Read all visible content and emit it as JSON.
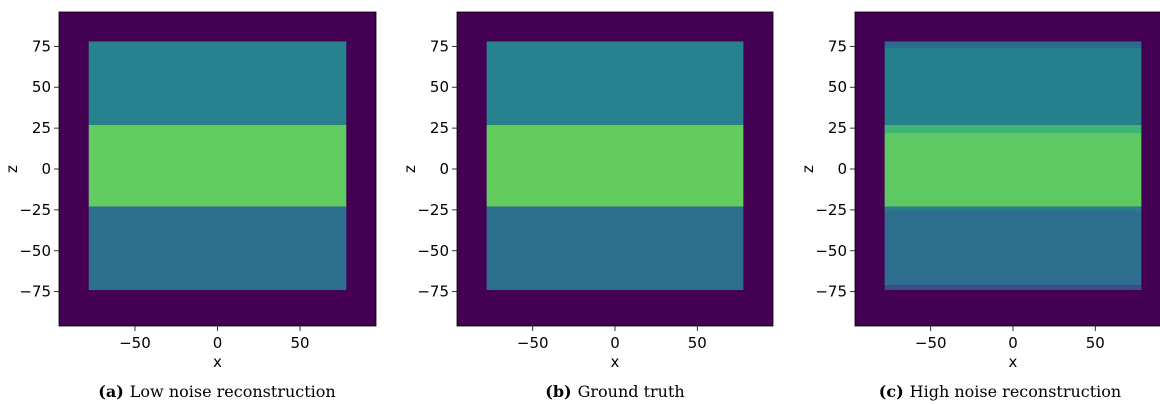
{
  "chart_data": [
    {
      "type": "heatmap",
      "tag": "(a)",
      "caption": "Low noise reconstruction",
      "xlabel": "x",
      "ylabel": "z",
      "xlim": [
        -96,
        96
      ],
      "ylim": [
        -96,
        96
      ],
      "xticks": [
        -50,
        0,
        50
      ],
      "yticks": [
        75,
        50,
        25,
        0,
        -25,
        -50,
        -75
      ],
      "background_color": "#440154",
      "regions": [
        {
          "x": [
            -78,
            78
          ],
          "z": [
            27,
            78
          ],
          "color": "#26828e"
        },
        {
          "x": [
            -78,
            78
          ],
          "z": [
            -23,
            27
          ],
          "color": "#60cc62"
        },
        {
          "x": [
            -78,
            78
          ],
          "z": [
            -74,
            -23
          ],
          "color": "#2c6f8e"
        }
      ]
    },
    {
      "type": "heatmap",
      "tag": "(b)",
      "caption": "Ground truth",
      "xlabel": "x",
      "ylabel": "z",
      "xlim": [
        -96,
        96
      ],
      "ylim": [
        -96,
        96
      ],
      "xticks": [
        -50,
        0,
        50
      ],
      "yticks": [
        75,
        50,
        25,
        0,
        -25,
        -50,
        -75
      ],
      "background_color": "#440154",
      "regions": [
        {
          "x": [
            -78,
            78
          ],
          "z": [
            27,
            78
          ],
          "color": "#26828e"
        },
        {
          "x": [
            -78,
            78
          ],
          "z": [
            -23,
            27
          ],
          "color": "#62cc5f"
        },
        {
          "x": [
            -78,
            78
          ],
          "z": [
            -74,
            -23
          ],
          "color": "#2c6e8e"
        }
      ]
    },
    {
      "type": "heatmap",
      "tag": "(c)",
      "caption": "High noise reconstruction",
      "xlabel": "x",
      "ylabel": "z",
      "xlim": [
        -96,
        96
      ],
      "ylim": [
        -96,
        96
      ],
      "xticks": [
        -50,
        0,
        50
      ],
      "yticks": [
        75,
        50,
        25,
        0,
        -25,
        -50,
        -75
      ],
      "background_color": "#440154",
      "regions": [
        {
          "x": [
            -78,
            78
          ],
          "z": [
            74,
            78
          ],
          "color": "#2d6b8c"
        },
        {
          "x": [
            -78,
            78
          ],
          "z": [
            27,
            74
          ],
          "color": "#25808d"
        },
        {
          "x": [
            -78,
            78
          ],
          "z": [
            22,
            27
          ],
          "color": "#3fb575"
        },
        {
          "x": [
            -78,
            78
          ],
          "z": [
            -23,
            22
          ],
          "color": "#5ec962"
        },
        {
          "x": [
            -78,
            78
          ],
          "z": [
            -26,
            -23
          ],
          "color": "#2c7d8c"
        },
        {
          "x": [
            -78,
            78
          ],
          "z": [
            -71,
            -26
          ],
          "color": "#2d6d8e"
        },
        {
          "x": [
            -78,
            78
          ],
          "z": [
            -74,
            -71
          ],
          "color": "#3a4f8a"
        }
      ]
    }
  ]
}
